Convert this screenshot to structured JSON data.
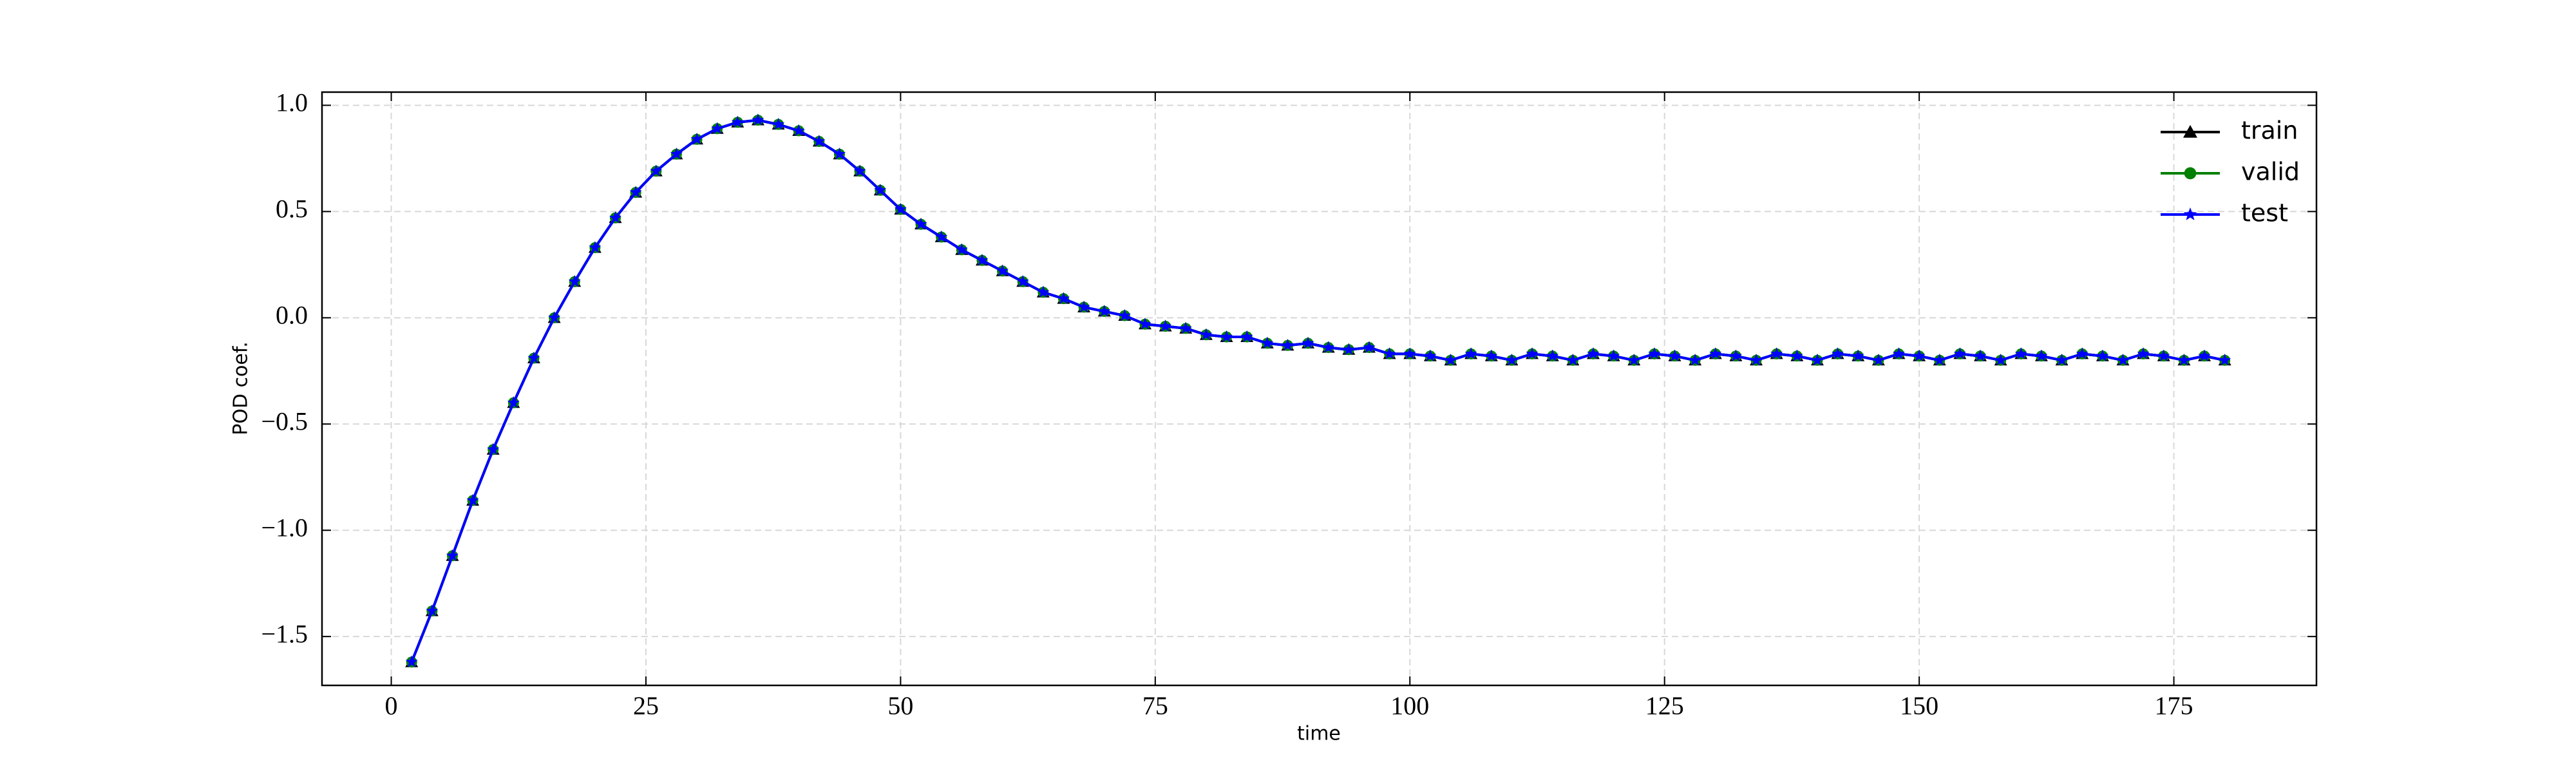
{
  "chart_data": {
    "type": "line",
    "xlabel": "time",
    "ylabel": "POD coef.",
    "x": [
      2,
      4,
      6,
      8,
      10,
      12,
      14,
      16,
      18,
      20,
      22,
      24,
      26,
      28,
      30,
      32,
      34,
      36,
      38,
      40,
      42,
      44,
      46,
      48,
      50,
      52,
      54,
      56,
      58,
      60,
      62,
      64,
      66,
      68,
      70,
      72,
      74,
      76,
      78,
      80,
      82,
      84,
      86,
      88,
      90,
      92,
      94,
      96,
      98,
      100,
      102,
      104,
      106,
      108,
      110,
      112,
      114,
      116,
      118,
      120,
      122,
      124,
      126,
      128,
      130,
      132,
      134,
      136,
      138,
      140,
      142,
      144,
      146,
      148,
      150,
      152,
      154,
      156,
      158,
      160,
      162,
      164,
      166,
      168,
      170,
      172,
      174,
      176,
      178,
      180
    ],
    "series": [
      {
        "name": "train",
        "color": "#000000",
        "marker": "triangle",
        "values": [
          -1.62,
          -1.38,
          -1.12,
          -0.86,
          -0.62,
          -0.4,
          -0.19,
          0.0,
          0.17,
          0.33,
          0.47,
          0.59,
          0.69,
          0.77,
          0.84,
          0.89,
          0.92,
          0.93,
          0.91,
          0.88,
          0.83,
          0.77,
          0.69,
          0.6,
          0.51,
          0.44,
          0.38,
          0.32,
          0.27,
          0.22,
          0.17,
          0.12,
          0.09,
          0.05,
          0.03,
          0.01,
          -0.03,
          -0.04,
          -0.05,
          -0.08,
          -0.09,
          -0.09,
          -0.12,
          -0.13,
          -0.12,
          -0.14,
          -0.15,
          -0.14,
          -0.17,
          -0.17,
          -0.18,
          -0.2,
          -0.17,
          -0.18,
          -0.2,
          -0.17,
          -0.18,
          -0.2,
          -0.17,
          -0.18,
          -0.2,
          -0.17,
          -0.18,
          -0.2,
          -0.17,
          -0.18,
          -0.2,
          -0.17,
          -0.18,
          -0.2,
          -0.17,
          -0.18,
          -0.2,
          -0.17,
          -0.18,
          -0.2,
          -0.17,
          -0.18,
          -0.2,
          -0.17,
          -0.18,
          -0.2,
          -0.17,
          -0.18,
          -0.2,
          -0.17,
          -0.18,
          -0.2,
          -0.18,
          -0.2
        ]
      },
      {
        "name": "valid",
        "color": "#008000",
        "marker": "circle",
        "values": [
          -1.62,
          -1.38,
          -1.12,
          -0.86,
          -0.62,
          -0.4,
          -0.19,
          0.0,
          0.17,
          0.33,
          0.47,
          0.59,
          0.69,
          0.77,
          0.84,
          0.89,
          0.92,
          0.93,
          0.91,
          0.88,
          0.83,
          0.77,
          0.69,
          0.6,
          0.51,
          0.44,
          0.38,
          0.32,
          0.27,
          0.22,
          0.17,
          0.12,
          0.09,
          0.05,
          0.03,
          0.01,
          -0.03,
          -0.04,
          -0.05,
          -0.08,
          -0.09,
          -0.09,
          -0.12,
          -0.13,
          -0.12,
          -0.14,
          -0.15,
          -0.14,
          -0.17,
          -0.17,
          -0.18,
          -0.2,
          -0.17,
          -0.18,
          -0.2,
          -0.17,
          -0.18,
          -0.2,
          -0.17,
          -0.18,
          -0.2,
          -0.17,
          -0.18,
          -0.2,
          -0.17,
          -0.18,
          -0.2,
          -0.17,
          -0.18,
          -0.2,
          -0.17,
          -0.18,
          -0.2,
          -0.17,
          -0.18,
          -0.2,
          -0.17,
          -0.18,
          -0.2,
          -0.17,
          -0.18,
          -0.2,
          -0.17,
          -0.18,
          -0.2,
          -0.17,
          -0.18,
          -0.2,
          -0.18,
          -0.2
        ]
      },
      {
        "name": "test",
        "color": "#0000ff",
        "marker": "star",
        "values": [
          -1.62,
          -1.38,
          -1.12,
          -0.86,
          -0.62,
          -0.4,
          -0.19,
          0.0,
          0.17,
          0.33,
          0.47,
          0.59,
          0.69,
          0.77,
          0.84,
          0.89,
          0.92,
          0.93,
          0.91,
          0.88,
          0.83,
          0.77,
          0.69,
          0.6,
          0.51,
          0.44,
          0.38,
          0.32,
          0.27,
          0.22,
          0.17,
          0.12,
          0.09,
          0.05,
          0.03,
          0.01,
          -0.03,
          -0.04,
          -0.05,
          -0.08,
          -0.09,
          -0.09,
          -0.12,
          -0.13,
          -0.12,
          -0.14,
          -0.15,
          -0.14,
          -0.17,
          -0.17,
          -0.18,
          -0.2,
          -0.17,
          -0.18,
          -0.2,
          -0.17,
          -0.18,
          -0.2,
          -0.17,
          -0.18,
          -0.2,
          -0.17,
          -0.18,
          -0.2,
          -0.17,
          -0.18,
          -0.2,
          -0.17,
          -0.18,
          -0.2,
          -0.17,
          -0.18,
          -0.2,
          -0.17,
          -0.18,
          -0.2,
          -0.17,
          -0.18,
          -0.2,
          -0.17,
          -0.18,
          -0.2,
          -0.17,
          -0.18,
          -0.2,
          -0.17,
          -0.18,
          -0.2,
          -0.18,
          -0.2
        ]
      }
    ],
    "xlim": [
      -6.8,
      189
    ],
    "xticks": [
      0,
      25,
      50,
      75,
      100,
      125,
      150,
      175
    ],
    "ylim": [
      -1.73,
      1.062
    ],
    "yticks": [
      {
        "value": -1.5,
        "label": "−1.5"
      },
      {
        "value": -1,
        "label": "−1.0"
      },
      {
        "value": -0.5,
        "label": "−0.5"
      },
      {
        "value": 0,
        "label": "0.0"
      },
      0.5,
      {
        "value": 1,
        "label": "1.0"
      }
    ],
    "grid": true,
    "legend": "upper right"
  }
}
